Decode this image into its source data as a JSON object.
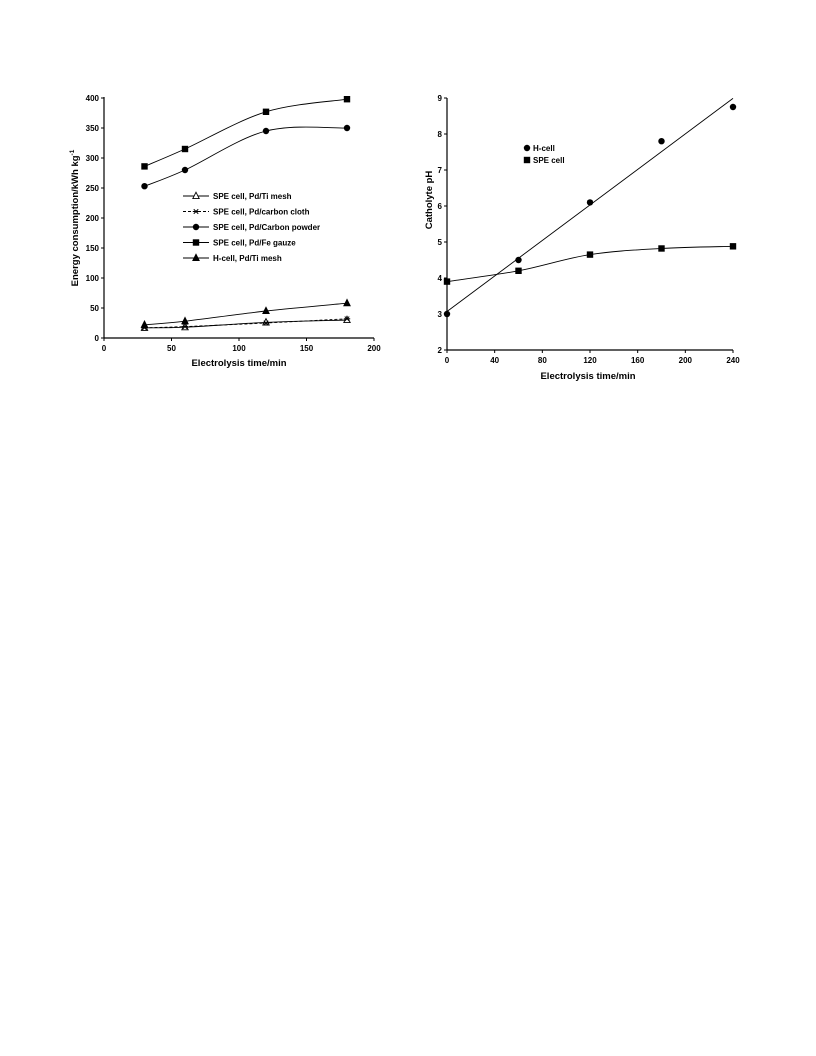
{
  "chart_data": [
    {
      "type": "line",
      "xlabel": "Electrolysis time/min",
      "ylabel": "Energy consumption/kWh kg",
      "ylabel_sup": "-1",
      "xlim": [
        0,
        200
      ],
      "ylim": [
        0,
        400
      ],
      "xticks": [
        "0",
        "50",
        "100",
        "150",
        "200"
      ],
      "yticks": [
        "0",
        "50",
        "100",
        "150",
        "200",
        "250",
        "300",
        "350",
        "400"
      ],
      "legend_position": "center",
      "series": [
        {
          "name": "SPE cell, Pd/Ti mesh",
          "marker": "triangle-open",
          "line": "solid",
          "x": [
            30,
            60,
            120,
            180
          ],
          "y": [
            17,
            18,
            26,
            30
          ]
        },
        {
          "name": "SPE cell, Pd/carbon cloth",
          "marker": "asterisk",
          "line": "dashed",
          "x": [
            30,
            60,
            120,
            180
          ],
          "y": [
            17,
            19,
            25,
            32
          ]
        },
        {
          "name": "SPE cell, Pd/Carbon powder",
          "marker": "circle",
          "line": "solid",
          "x": [
            30,
            60,
            120,
            180
          ],
          "y": [
            253,
            280,
            345,
            350
          ]
        },
        {
          "name": "SPE cell, Pd/Fe gauze",
          "marker": "square",
          "line": "solid",
          "x": [
            30,
            60,
            120,
            180
          ],
          "y": [
            286,
            315,
            377,
            398
          ]
        },
        {
          "name": "H-cell, Pd/Ti mesh",
          "marker": "triangle",
          "line": "solid",
          "x": [
            30,
            60,
            120,
            180
          ],
          "y": [
            22,
            28,
            45,
            58
          ]
        }
      ]
    },
    {
      "type": "scatter",
      "xlabel": "Electrolysis time/min",
      "ylabel": "Catholyte pH",
      "xlim": [
        0,
        240
      ],
      "ylim": [
        2,
        9
      ],
      "xticks": [
        "0",
        "40",
        "80",
        "120",
        "160",
        "200",
        "240"
      ],
      "yticks": [
        "2",
        "3",
        "4",
        "5",
        "6",
        "7",
        "8",
        "9"
      ],
      "legend_position": "upper-left",
      "series": [
        {
          "name": "H-cell",
          "marker": "circle",
          "x": [
            0,
            60,
            120,
            180,
            240
          ],
          "y": [
            3.0,
            4.5,
            6.1,
            7.8,
            8.75
          ],
          "fit": "linear"
        },
        {
          "name": "SPE cell",
          "marker": "square",
          "x": [
            0,
            60,
            120,
            180,
            240
          ],
          "y": [
            3.9,
            4.2,
            4.65,
            4.82,
            4.88
          ],
          "fit": "curve"
        }
      ]
    }
  ]
}
